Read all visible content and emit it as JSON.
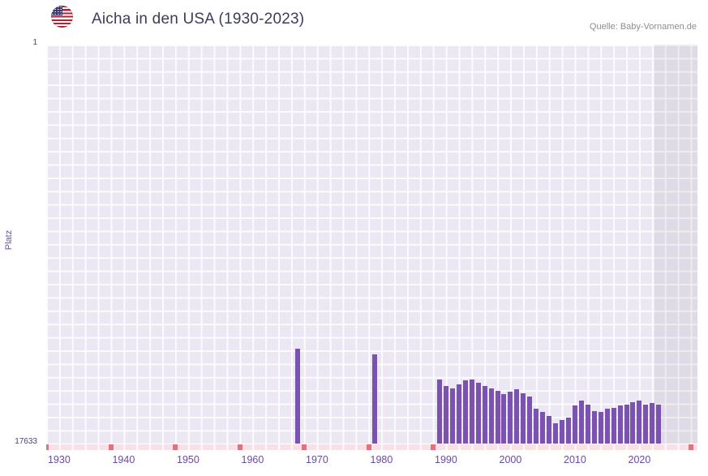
{
  "header": {
    "title": "Aicha in den USA (1930-2023)",
    "source": "Quelle: Baby-Vornamen.de",
    "flag": "us-flag"
  },
  "chart_data": {
    "type": "bar",
    "title": "Aicha in den USA (1930-2023)",
    "xlabel": "",
    "ylabel": "Platz",
    "y_axis_inverted": true,
    "y_top_label": "1",
    "y_bottom_label": "17633",
    "y_domain": [
      1,
      17633
    ],
    "x_domain": [
      1928,
      2029
    ],
    "x_ticks": [
      1930,
      1940,
      1950,
      1960,
      1970,
      1980,
      1990,
      2000,
      2010,
      2020
    ],
    "bar_color": "#7a52b0",
    "grid": true,
    "legend": "none",
    "no_data_marks_years": [
      1928,
      1938,
      1948,
      1958,
      1968,
      1978,
      1988,
      2028
    ],
    "points": [
      {
        "year": 1967,
        "rank": 13450
      },
      {
        "year": 1979,
        "rank": 13700
      },
      {
        "year": 1989,
        "rank": 14800
      },
      {
        "year": 1990,
        "rank": 15100
      },
      {
        "year": 1991,
        "rank": 15200
      },
      {
        "year": 1992,
        "rank": 15000
      },
      {
        "year": 1993,
        "rank": 14850
      },
      {
        "year": 1994,
        "rank": 14800
      },
      {
        "year": 1995,
        "rank": 14950
      },
      {
        "year": 1996,
        "rank": 15100
      },
      {
        "year": 1997,
        "rank": 15200
      },
      {
        "year": 1998,
        "rank": 15300
      },
      {
        "year": 1999,
        "rank": 15450
      },
      {
        "year": 2000,
        "rank": 15350
      },
      {
        "year": 2001,
        "rank": 15250
      },
      {
        "year": 2002,
        "rank": 15400
      },
      {
        "year": 2003,
        "rank": 15550
      },
      {
        "year": 2004,
        "rank": 16100
      },
      {
        "year": 2005,
        "rank": 16250
      },
      {
        "year": 2006,
        "rank": 16400
      },
      {
        "year": 2007,
        "rank": 16750
      },
      {
        "year": 2008,
        "rank": 16600
      },
      {
        "year": 2009,
        "rank": 16500
      },
      {
        "year": 2010,
        "rank": 15950
      },
      {
        "year": 2011,
        "rank": 15750
      },
      {
        "year": 2012,
        "rank": 15900
      },
      {
        "year": 2013,
        "rank": 16200
      },
      {
        "year": 2014,
        "rank": 16250
      },
      {
        "year": 2015,
        "rank": 16100
      },
      {
        "year": 2016,
        "rank": 16050
      },
      {
        "year": 2017,
        "rank": 15950
      },
      {
        "year": 2018,
        "rank": 15900
      },
      {
        "year": 2019,
        "rank": 15800
      },
      {
        "year": 2020,
        "rank": 15750
      },
      {
        "year": 2021,
        "rank": 15900
      },
      {
        "year": 2022,
        "rank": 15850
      },
      {
        "year": 2023,
        "rank": 15900
      }
    ]
  },
  "colors": {
    "plot_background": "#ebe7f3",
    "bar": "#7a52b0",
    "no_data_strip": "#f8e1e6",
    "no_data_mark": "#e4727c",
    "tick_label": "#6b4aa2",
    "title_text": "#3c3c5c"
  }
}
